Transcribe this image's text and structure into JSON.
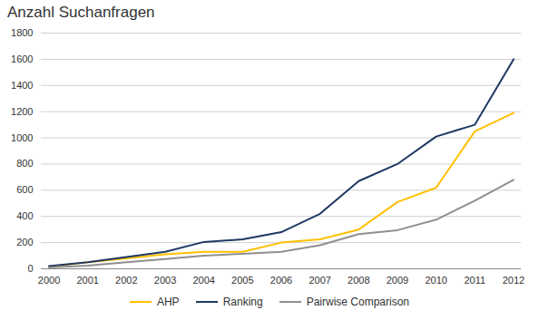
{
  "chart_data": {
    "type": "line",
    "title": "Anzahl Suchanfragen",
    "x": [
      2000,
      2001,
      2002,
      2003,
      2004,
      2005,
      2006,
      2007,
      2008,
      2009,
      2010,
      2011,
      2012
    ],
    "series": [
      {
        "name": "AHP",
        "color": "#FFC000",
        "values": [
          15,
          50,
          80,
          110,
          130,
          130,
          200,
          225,
          300,
          510,
          620,
          1050,
          1190
        ]
      },
      {
        "name": "Ranking",
        "color": "#1F3864",
        "values": [
          20,
          50,
          90,
          130,
          205,
          225,
          280,
          420,
          670,
          800,
          1010,
          1100,
          1600
        ]
      },
      {
        "name": "Pairwise Comparison",
        "color": "#909090",
        "values": [
          10,
          25,
          50,
          75,
          100,
          115,
          130,
          180,
          265,
          295,
          375,
          520,
          680
        ]
      }
    ],
    "xlim": [
      1999.8,
      2012.2
    ],
    "xticks": [
      2000,
      2001,
      2002,
      2003,
      2004,
      2005,
      2006,
      2007,
      2008,
      2009,
      2010,
      2011,
      2012
    ],
    "ylim": [
      0,
      1800
    ],
    "yticks": [
      0,
      200,
      400,
      600,
      800,
      1000,
      1200,
      1400,
      1600,
      1800
    ],
    "grid": true,
    "legend": "bottom"
  }
}
